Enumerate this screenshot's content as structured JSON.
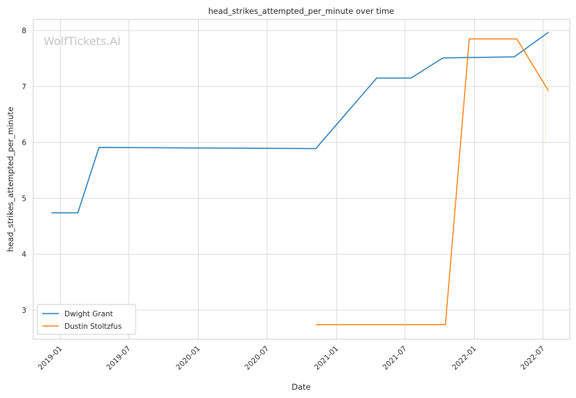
{
  "chart_data": {
    "type": "line",
    "title": "head_strikes_attempted_per_minute over time",
    "xlabel": "Date",
    "ylabel": "head_strikes_attempted_per_minute",
    "watermark": "WolfTickets.AI",
    "x_ticks": [
      "2019-01",
      "2019-07",
      "2020-01",
      "2020-07",
      "2021-01",
      "2021-07",
      "2022-01",
      "2022-07"
    ],
    "y_ticks": [
      3,
      4,
      5,
      6,
      7,
      8
    ],
    "xlim": [
      "2018-10-21",
      "2022-09-10"
    ],
    "ylim": [
      2.48,
      8.2
    ],
    "grid": true,
    "legend_position": "lower-left",
    "series": [
      {
        "name": "Dwight Grant",
        "color": "#1f77b4",
        "points": [
          {
            "x": "2018-12-08",
            "y": 4.74
          },
          {
            "x": "2019-02-16",
            "y": 4.74
          },
          {
            "x": "2019-04-13",
            "y": 5.91
          },
          {
            "x": "2020-11-07",
            "y": 5.89
          },
          {
            "x": "2021-04-17",
            "y": 7.15
          },
          {
            "x": "2021-07-17",
            "y": 7.15
          },
          {
            "x": "2021-10-09",
            "y": 7.51
          },
          {
            "x": "2022-04-16",
            "y": 7.53
          },
          {
            "x": "2022-07-16",
            "y": 7.97
          }
        ]
      },
      {
        "name": "Dustin Stoltzfus",
        "color": "#ff7f0e",
        "points": [
          {
            "x": "2020-11-07",
            "y": 2.74
          },
          {
            "x": "2021-10-16",
            "y": 2.74
          },
          {
            "x": "2021-12-18",
            "y": 7.85
          },
          {
            "x": "2022-04-23",
            "y": 7.85
          },
          {
            "x": "2022-07-16",
            "y": 6.92
          }
        ]
      }
    ]
  }
}
